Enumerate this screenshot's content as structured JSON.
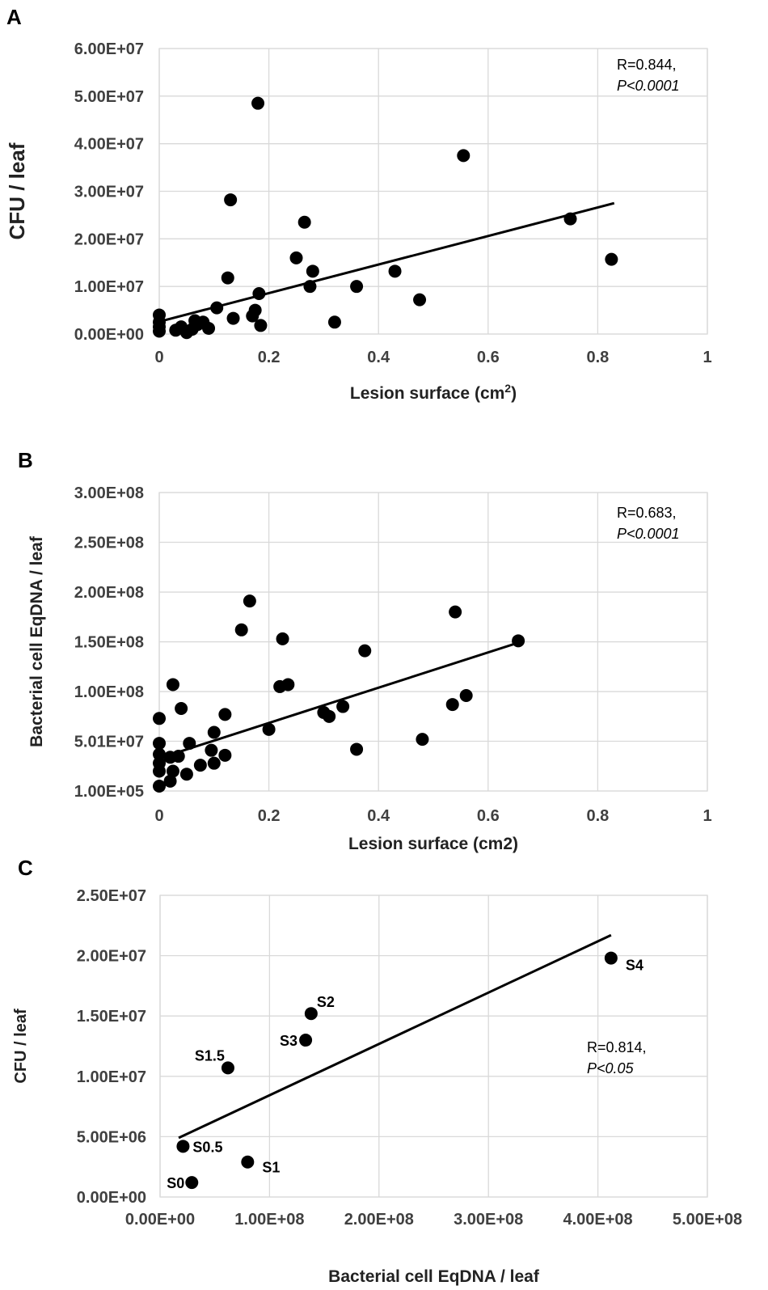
{
  "chart_data": [
    {
      "panel": "A",
      "type": "scatter",
      "xlabel": "Lesion surface (cm",
      "xlabel_sup": "2",
      "xlabel_close": ")",
      "ylabel": "CFU / leaf",
      "xlim": [
        0,
        1
      ],
      "ylim": [
        0,
        60000000
      ],
      "xticks": [
        0,
        0.2,
        0.4,
        0.6,
        0.8,
        1
      ],
      "xtick_labels": [
        "0",
        "0.2",
        "0.4",
        "0.6",
        "0.8",
        "1"
      ],
      "yticks": [
        0,
        10000000,
        20000000,
        30000000,
        40000000,
        50000000,
        60000000
      ],
      "ytick_labels": [
        "0.00E+00",
        "1.00E+07",
        "2.00E+07",
        "3.00E+07",
        "4.00E+07",
        "5.00E+07",
        "6.00E+07"
      ],
      "annotation": [
        "R=0.844,",
        "P<0.0001"
      ],
      "trendline": [
        [
          0,
          2600000
        ],
        [
          0.83,
          27500000
        ]
      ],
      "points": [
        [
          0,
          4000000
        ],
        [
          0,
          2500000
        ],
        [
          0,
          1500000
        ],
        [
          0,
          600000
        ],
        [
          0.03,
          800000
        ],
        [
          0.04,
          1500000
        ],
        [
          0.05,
          300000
        ],
        [
          0.06,
          1000000
        ],
        [
          0.065,
          2800000
        ],
        [
          0.07,
          2000000
        ],
        [
          0.08,
          2500000
        ],
        [
          0.09,
          1200000
        ],
        [
          0.105,
          5500000
        ],
        [
          0.125,
          11800000
        ],
        [
          0.13,
          28200000
        ],
        [
          0.135,
          3300000
        ],
        [
          0.17,
          3800000
        ],
        [
          0.175,
          5000000
        ],
        [
          0.18,
          48500000
        ],
        [
          0.182,
          8500000
        ],
        [
          0.185,
          1800000
        ],
        [
          0.25,
          16000000
        ],
        [
          0.265,
          23500000
        ],
        [
          0.275,
          10000000
        ],
        [
          0.28,
          13200000
        ],
        [
          0.32,
          2500000
        ],
        [
          0.36,
          10000000
        ],
        [
          0.43,
          13200000
        ],
        [
          0.475,
          7200000
        ],
        [
          0.555,
          37500000
        ],
        [
          0.75,
          24200000
        ],
        [
          0.825,
          15700000
        ]
      ]
    },
    {
      "panel": "B",
      "type": "scatter",
      "xlabel": "Lesion surface (cm2)",
      "ylabel": "Bacterial cell EqDNA / leaf",
      "xlim": [
        0,
        1
      ],
      "ylim": [
        100000,
        300000000
      ],
      "xticks": [
        0,
        0.2,
        0.4,
        0.6,
        0.8,
        1
      ],
      "xtick_labels": [
        "0",
        "0.2",
        "0.4",
        "0.6",
        "0.8",
        "1"
      ],
      "yticks": [
        100000,
        50100000,
        100000000,
        150000000,
        200000000,
        250000000,
        300000000
      ],
      "ytick_labels": [
        "1.00E+05",
        "5.01E+07",
        "1.00E+08",
        "1.50E+08",
        "2.00E+08",
        "2.50E+08",
        "3.00E+08"
      ],
      "annotation": [
        "R=0.683,",
        "P<0.0001"
      ],
      "trendline": [
        [
          0,
          33000000
        ],
        [
          0.66,
          150000000
        ]
      ],
      "points": [
        [
          0,
          73000000
        ],
        [
          0,
          48000000
        ],
        [
          0,
          37000000
        ],
        [
          0,
          28000000
        ],
        [
          0,
          20000000
        ],
        [
          0,
          5000000
        ],
        [
          0.02,
          10000000
        ],
        [
          0.025,
          20000000
        ],
        [
          0.02,
          34000000
        ],
        [
          0.025,
          107000000
        ],
        [
          0.035,
          35000000
        ],
        [
          0.04,
          83000000
        ],
        [
          0.05,
          17000000
        ],
        [
          0.055,
          48000000
        ],
        [
          0.075,
          26000000
        ],
        [
          0.095,
          41000000
        ],
        [
          0.1,
          59000000
        ],
        [
          0.1,
          28000000
        ],
        [
          0.12,
          77000000
        ],
        [
          0.12,
          36000000
        ],
        [
          0.15,
          162000000
        ],
        [
          0.165,
          191000000
        ],
        [
          0.2,
          62000000
        ],
        [
          0.22,
          105000000
        ],
        [
          0.225,
          153000000
        ],
        [
          0.235,
          107000000
        ],
        [
          0.3,
          79000000
        ],
        [
          0.31,
          75000000
        ],
        [
          0.335,
          85000000
        ],
        [
          0.36,
          42000000
        ],
        [
          0.375,
          141000000
        ],
        [
          0.48,
          52000000
        ],
        [
          0.535,
          87000000
        ],
        [
          0.54,
          180000000
        ],
        [
          0.56,
          96000000
        ],
        [
          0.655,
          151000000
        ]
      ]
    },
    {
      "panel": "C",
      "type": "scatter",
      "xlabel": "Bacterial cell EqDNA / leaf",
      "ylabel": "CFU / leaf",
      "xlim": [
        0,
        500000000
      ],
      "ylim": [
        0,
        25000000
      ],
      "xticks": [
        0,
        100000000,
        200000000,
        300000000,
        400000000,
        500000000
      ],
      "xtick_labels": [
        "0.00E+00",
        "1.00E+08",
        "2.00E+08",
        "3.00E+08",
        "4.00E+08",
        "5.00E+08"
      ],
      "yticks": [
        0,
        5000000,
        10000000,
        15000000,
        20000000,
        25000000
      ],
      "ytick_labels": [
        "0.00E+00",
        "5.00E+06",
        "1.00E+07",
        "1.50E+07",
        "2.00E+07",
        "2.50E+07"
      ],
      "annotation": [
        "R=0.814,",
        "P<0.05"
      ],
      "trendline": [
        [
          17000000,
          4900000
        ],
        [
          412000000,
          21700000
        ]
      ],
      "points": [
        [
          29000000,
          1200000
        ],
        [
          21000000,
          4200000
        ],
        [
          80000000,
          2900000
        ],
        [
          62000000,
          10700000
        ],
        [
          133000000,
          13000000
        ],
        [
          138000000,
          15200000
        ],
        [
          412000000,
          19800000
        ]
      ],
      "point_labels": [
        "S0",
        "S0.5",
        "S1",
        "S1.5",
        "S3",
        "S2",
        "S4"
      ]
    }
  ],
  "panel_labels": [
    "A",
    "B",
    "C"
  ]
}
